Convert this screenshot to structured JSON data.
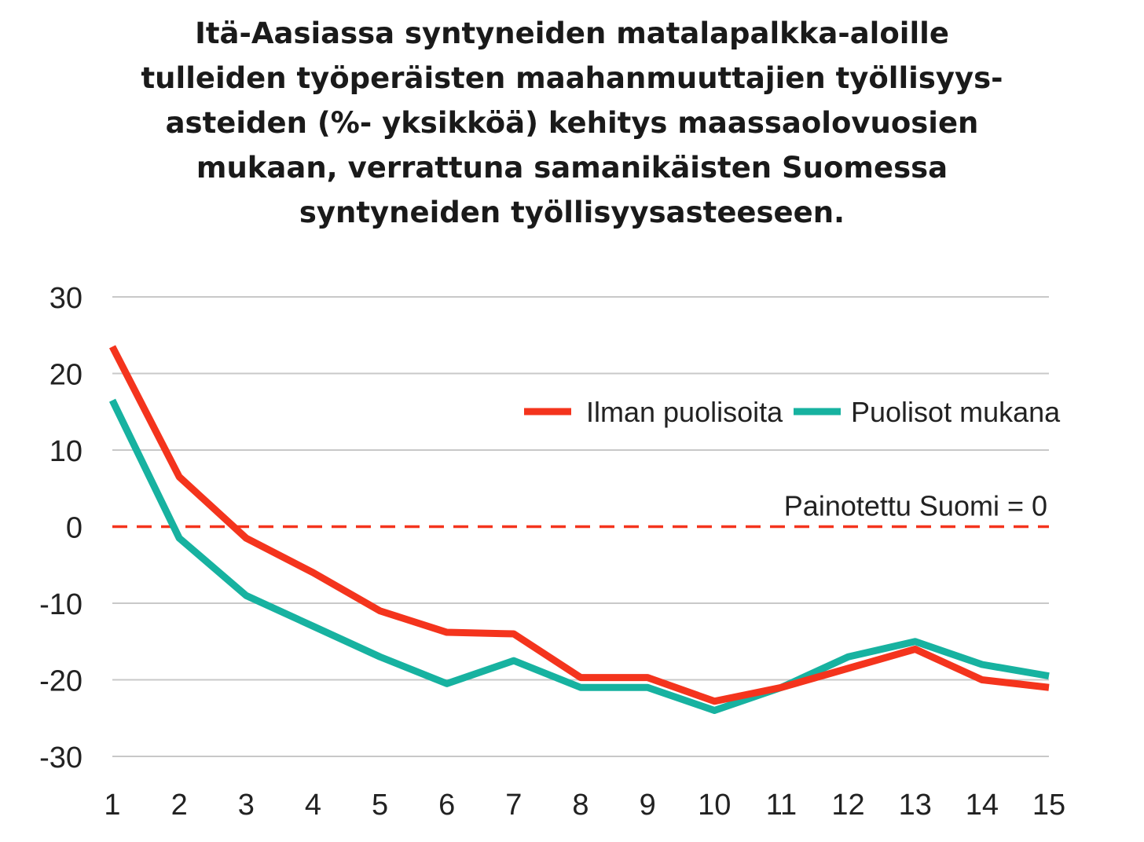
{
  "chart_data": {
    "type": "line",
    "title_lines": [
      "Itä-Aasiassa syntyneiden matalapalkka-aloille",
      "tulleiden työperäisten maahanmuuttajien työllisyys-",
      "asteiden (%- yksikköä) kehitys maassaolovuosien",
      "mukaan, verrattuna samanikäisten Suomessa",
      "syntyneiden työllisyysasteeseen."
    ],
    "x": [
      1,
      2,
      3,
      4,
      5,
      6,
      7,
      8,
      9,
      10,
      11,
      12,
      13,
      14,
      15
    ],
    "xlim": [
      1,
      15
    ],
    "ylim": [
      -30,
      30
    ],
    "yticks": [
      30,
      20,
      10,
      0,
      -10,
      -20,
      -30
    ],
    "grid": true,
    "legend_position": "top-right",
    "series": [
      {
        "name": "Ilman puolisoita",
        "color": "#f4341d",
        "values": [
          23.5,
          6.5,
          -1.5,
          -6,
          -11,
          -13.8,
          -14,
          -19.7,
          -19.7,
          -22.8,
          -21,
          -18.5,
          -16,
          -20,
          -21
        ]
      },
      {
        "name": "Puolisot mukana",
        "color": "#17b2a0",
        "values": [
          16.5,
          -1.5,
          -9,
          -13,
          -17,
          -20.5,
          -17.5,
          -21,
          -21,
          -24,
          -21,
          -17,
          -15,
          -18,
          -19.5
        ]
      }
    ],
    "reference_line": {
      "value": 0,
      "label": "Painotettu Suomi = 0",
      "color": "#f4341d",
      "style": "dashed"
    }
  }
}
